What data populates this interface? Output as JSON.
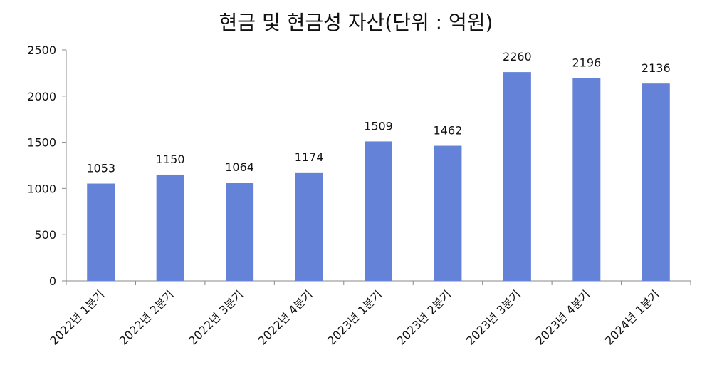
{
  "chart_data": {
    "type": "bar",
    "title": "현금 및 현금성 자산(단위 : 억원)",
    "categories": [
      "2022년 1분기",
      "2022년 2분기",
      "2022년 3분기",
      "2022년 4분기",
      "2023년 1분기",
      "2023년 2분기",
      "2023년 3분기",
      "2023년 4분기",
      "2024년 1분기"
    ],
    "values": [
      1053,
      1150,
      1064,
      1174,
      1509,
      1462,
      2260,
      2196,
      2136
    ],
    "ylim": [
      0,
      2500
    ],
    "yticks": [
      0,
      500,
      1000,
      1500,
      2000,
      2500
    ],
    "grid": false,
    "legend": "none",
    "bar_color": "#6483D8"
  }
}
